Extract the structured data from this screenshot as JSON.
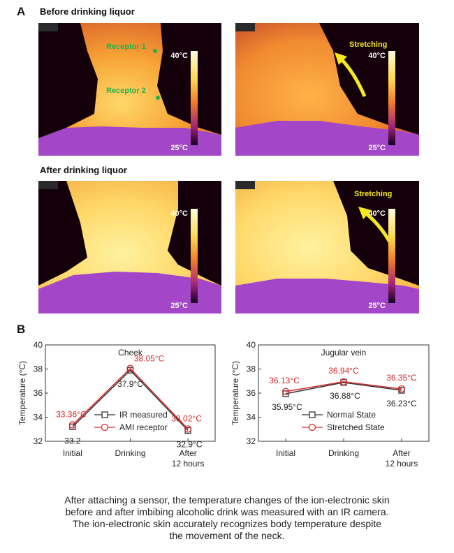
{
  "panel_a": {
    "letter": "A",
    "before_title": "Before drinking liquor",
    "after_title": "After drinking liquor",
    "scale_top": "40°C",
    "scale_bottom": "25°C",
    "receptor1": "Receptor 1",
    "receptor2": "Receptor 2",
    "stretching": "Stretching",
    "colors": {
      "bg": "#14000a",
      "hot": "#ffd86a",
      "warm": "#f3962d",
      "cool": "#a347c8",
      "receptor": "#1fb34a",
      "arrow": "#f4ea1c"
    }
  },
  "panel_b": {
    "letter": "B"
  },
  "caption": {
    "line1": "After attaching a sensor, the temperature changes of the ion-electronic skin",
    "line2": "before and after imbibing alcoholic drink was measured with an IR camera.",
    "line3": "The ion-electronic skin accurately recognizes body temperature despite",
    "line4": "the movement of the neck."
  },
  "chart_data": [
    {
      "type": "line",
      "title": "Cheek",
      "ylabel": "Temperature (°C)",
      "categories": [
        "Initial",
        "Drinking",
        "After\n12 hours"
      ],
      "ylim": [
        32,
        40
      ],
      "yticks": [
        32,
        34,
        36,
        38,
        40
      ],
      "legend_position": "bottom-right",
      "series": [
        {
          "name": "IR measured",
          "values": [
            33.2,
            37.9,
            32.9
          ],
          "labels": [
            "33.2",
            "37.9°C",
            "32.9°C"
          ],
          "color": "#333333",
          "marker": "square"
        },
        {
          "name": "AMI receptor",
          "values": [
            33.36,
            38.05,
            33.02
          ],
          "labels": [
            "33.36°C",
            "38.05°C",
            "33.02°C"
          ],
          "color": "#d62a2a",
          "marker": "circle"
        }
      ]
    },
    {
      "type": "line",
      "title": "Jugular vein",
      "ylabel": "Temperature (°C)",
      "categories": [
        "Initial",
        "Drinking",
        "After\n12 hours"
      ],
      "ylim": [
        32,
        40
      ],
      "yticks": [
        32,
        34,
        36,
        38,
        40
      ],
      "legend_position": "bottom-right",
      "series": [
        {
          "name": "Normal State",
          "values": [
            35.95,
            36.88,
            36.23
          ],
          "labels": [
            "35.95°C",
            "36.88°C",
            "36.23°C"
          ],
          "color": "#333333",
          "marker": "square"
        },
        {
          "name": "Stretched State",
          "values": [
            36.13,
            36.94,
            36.35
          ],
          "labels": [
            "36.13°C",
            "36.94°C",
            "36.35°C"
          ],
          "color": "#d62a2a",
          "marker": "circle"
        }
      ]
    }
  ]
}
